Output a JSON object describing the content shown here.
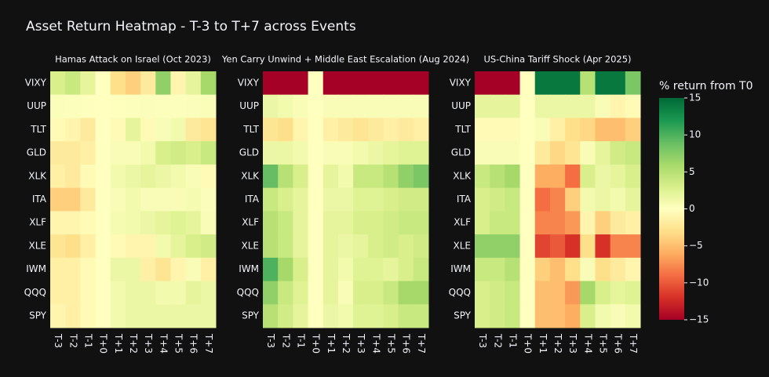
{
  "title": "Asset Return Heatmap - T-3 to T+7 across Events",
  "colorbar": {
    "title": "% return from T0",
    "zlim": [
      -15,
      15
    ],
    "ticks": [
      {
        "value": -15,
        "label": "−15"
      },
      {
        "value": -10,
        "label": "−10"
      },
      {
        "value": -5,
        "label": "−5"
      },
      0,
      5,
      10,
      15
    ],
    "colors": [
      "#a50026",
      "#d73027",
      "#f46d43",
      "#fdae61",
      "#fee08b",
      "#ffffbf",
      "#d9ef8b",
      "#a6d96a",
      "#66bd63",
      "#1a9850",
      "#006837"
    ]
  },
  "chart_data": [
    {
      "type": "heatmap",
      "title": "Hamas Attack on Israel (Oct 2023)",
      "x": [
        "T-3",
        "T-2",
        "T-1",
        "T+0",
        "T+1",
        "T+2",
        "T+3",
        "T+4",
        "T+5",
        "T+6",
        "T+7"
      ],
      "y": [
        "VIXY",
        "UUP",
        "TLT",
        "GLD",
        "XLK",
        "ITA",
        "XLF",
        "XLE",
        "IWM",
        "QQQ",
        "SPY"
      ],
      "z": [
        [
          3,
          4,
          2,
          0,
          -3,
          -4,
          -2,
          7,
          -1,
          2,
          6
        ],
        [
          0.3,
          0.2,
          0.1,
          0,
          0.1,
          0.2,
          0.3,
          0.2,
          0.2,
          0.3,
          0.4
        ],
        [
          -0.5,
          -1,
          -2,
          0,
          -0.5,
          2,
          -0.5,
          0.5,
          1,
          -2,
          -2.5
        ],
        [
          -2,
          -2,
          -1.5,
          0,
          0.5,
          0.5,
          1,
          3,
          3.5,
          3,
          4
        ],
        [
          -1.5,
          -2,
          -0.5,
          0,
          1,
          1.5,
          2,
          1.5,
          1,
          0.5,
          -0.5
        ],
        [
          -4,
          -4,
          -2,
          0,
          0.5,
          1,
          0.5,
          0.5,
          0.5,
          0.8,
          0.3
        ],
        [
          -1,
          -1,
          -0.5,
          0,
          0.8,
          1,
          1.5,
          2,
          2.5,
          2,
          0.5
        ],
        [
          -2.5,
          -3,
          -1.5,
          0,
          -0.5,
          -1,
          -1,
          1,
          2,
          3,
          3.5
        ],
        [
          -1.5,
          -1.5,
          -0.5,
          0,
          1.5,
          1.5,
          -1.5,
          -2.5,
          -1,
          0.5,
          -1.5
        ],
        [
          -1.5,
          -1.5,
          -0.5,
          0,
          1,
          1.5,
          1.5,
          1,
          1,
          2,
          1.5
        ],
        [
          -1,
          -1.5,
          -0.5,
          0,
          1,
          1.5,
          1.5,
          1.5,
          1.5,
          1.5,
          1.5
        ]
      ]
    },
    {
      "type": "heatmap",
      "title": "Yen Carry Unwind + Middle East Escalation (Aug 2024)",
      "x": [
        "T-3",
        "T-2",
        "T-1",
        "T+0",
        "T+1",
        "T+2",
        "T+3",
        "T+4",
        "T+5",
        "T+6",
        "T+7"
      ],
      "y": [
        "VIXY",
        "UUP",
        "TLT",
        "GLD",
        "XLK",
        "ITA",
        "XLF",
        "XLE",
        "IWM",
        "QQQ",
        "SPY"
      ],
      "z": [
        [
          -15,
          -15,
          -15,
          0,
          -15,
          -15,
          -15,
          -15,
          -15,
          -15,
          -15
        ],
        [
          1.5,
          1,
          0.5,
          0,
          0.5,
          0.5,
          0.5,
          0.5,
          0.5,
          0.5,
          0.5
        ],
        [
          -2.5,
          -3,
          -1,
          0,
          -1.5,
          -2,
          -2.5,
          -2,
          -1.5,
          -2,
          -1.5
        ],
        [
          1.5,
          1.5,
          1,
          0,
          0.5,
          0.5,
          1,
          1.5,
          2,
          2.5,
          2.5
        ],
        [
          9,
          5,
          3,
          0,
          2,
          1,
          4,
          4,
          5,
          7,
          8
        ],
        [
          4,
          3,
          2,
          0,
          1.5,
          1.5,
          2.5,
          2.5,
          3,
          3.5,
          3.5
        ],
        [
          5,
          4,
          2,
          0,
          2,
          2,
          3,
          3,
          3.5,
          4,
          4
        ],
        [
          5,
          4,
          2,
          0,
          2,
          1.5,
          2,
          3,
          3.5,
          3,
          3.5
        ],
        [
          10,
          6,
          3,
          0,
          2,
          1,
          2.5,
          2.5,
          2,
          3,
          4
        ],
        [
          7,
          4,
          2.5,
          0,
          2,
          0.5,
          3,
          3,
          4,
          6,
          6
        ],
        [
          5,
          3.5,
          2,
          0,
          1.5,
          1,
          2.5,
          2.5,
          3,
          4,
          4
        ]
      ]
    },
    {
      "type": "heatmap",
      "title": "US-China Tariff Shock (Apr 2025)",
      "x": [
        "T-3",
        "T-2",
        "T-1",
        "T+0",
        "T+1",
        "T+2",
        "T+3",
        "T+4",
        "T+5",
        "T+6",
        "T+7"
      ],
      "y": [
        "VIXY",
        "UUP",
        "TLT",
        "GLD",
        "XLK",
        "ITA",
        "XLF",
        "XLE",
        "IWM",
        "QQQ",
        "SPY"
      ],
      "z": [
        [
          -15,
          -15,
          -15,
          0,
          14,
          14,
          14,
          5,
          14,
          14,
          8
        ],
        [
          2,
          2,
          2,
          0,
          1.5,
          1.5,
          1.5,
          1.5,
          0.5,
          -1,
          -0.5
        ],
        [
          -0.5,
          -0.5,
          -0.5,
          0,
          0.5,
          -1.5,
          -3,
          -3.5,
          -5,
          -5,
          -4
        ],
        [
          0.5,
          0.5,
          0.5,
          0,
          -2,
          -3.5,
          -2.5,
          0.5,
          2,
          3.5,
          4
        ],
        [
          4,
          5,
          6,
          0,
          -6,
          -6,
          -9,
          3,
          1.5,
          2,
          3
        ],
        [
          3,
          3.5,
          4,
          0,
          -9,
          -8,
          -4,
          1,
          1.5,
          1,
          2
        ],
        [
          3,
          4,
          4,
          0,
          -8,
          -8,
          -7,
          -1,
          -4,
          -2,
          -1.5
        ],
        [
          7,
          7,
          7,
          0,
          -11,
          -10,
          -12,
          -3,
          -12,
          -8,
          -8
        ],
        [
          4,
          4,
          5,
          0,
          -4,
          -5,
          -3,
          0.5,
          -3,
          -2,
          -1
        ],
        [
          3,
          3.5,
          4,
          0,
          -5,
          -5,
          -7,
          6,
          3,
          2,
          2.5
        ],
        [
          3,
          3.5,
          4,
          0,
          -5,
          -5,
          -6,
          3,
          1,
          0.5,
          1
        ]
      ]
    }
  ]
}
